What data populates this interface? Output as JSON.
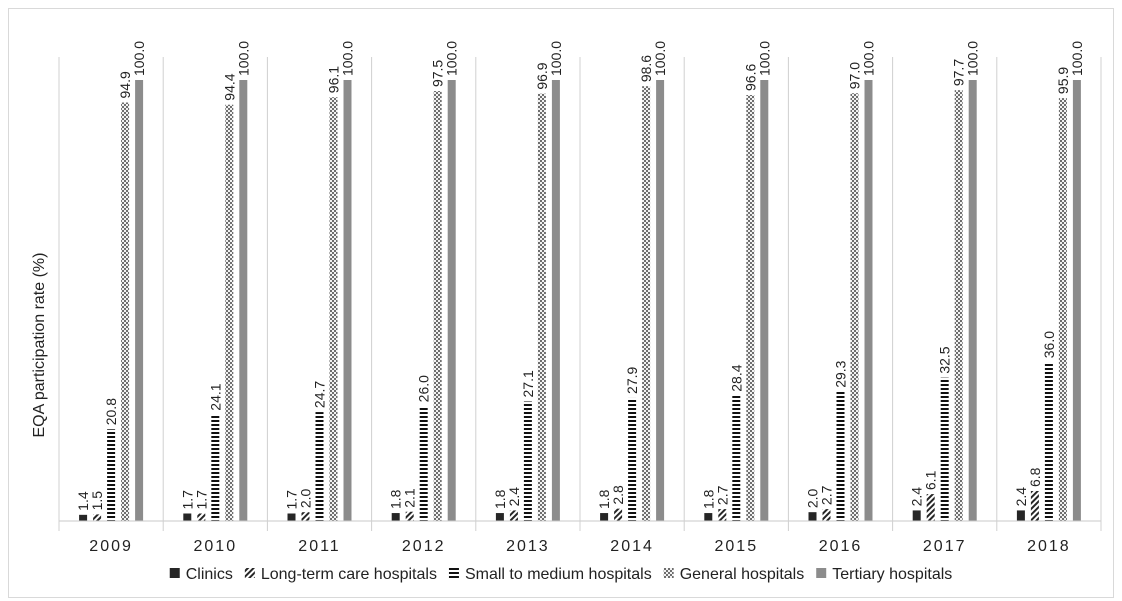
{
  "chart_data": {
    "type": "bar",
    "title": "",
    "xlabel": "",
    "ylabel": "EQA participation rate (%)",
    "ylim": [
      0,
      100
    ],
    "grid": false,
    "legend_position": "bottom",
    "categories": [
      "2009",
      "2010",
      "2011",
      "2012",
      "2013",
      "2014",
      "2015",
      "2016",
      "2017",
      "2018"
    ],
    "series": [
      {
        "name": "Clinics",
        "pattern": "solid-dark",
        "color": "#262626",
        "values": [
          1.4,
          1.7,
          1.7,
          1.8,
          1.8,
          1.8,
          1.8,
          2.0,
          2.4,
          2.4
        ],
        "labels": [
          "1.4",
          "1.7",
          "1.7",
          "1.8",
          "1.8",
          "1.8",
          "1.8",
          "2.0",
          "2.4",
          "2.4"
        ]
      },
      {
        "name": "Long-term care hospitals",
        "pattern": "diagonal-stripes",
        "color": "#262626",
        "values": [
          1.5,
          1.7,
          2.0,
          2.1,
          2.4,
          2.8,
          2.7,
          2.7,
          6.1,
          6.8
        ],
        "labels": [
          "1.5",
          "1.7",
          "2.0",
          "2.1",
          "2.4",
          "2.8",
          "2.7",
          "2.7",
          "6.1",
          "6.8"
        ]
      },
      {
        "name": "Small to medium hospitals",
        "pattern": "horizontal-dashes",
        "color": "#262626",
        "values": [
          20.8,
          24.1,
          24.7,
          26.0,
          27.1,
          27.9,
          28.4,
          29.3,
          32.5,
          36.0
        ],
        "labels": [
          "20.8",
          "24.1",
          "24.7",
          "26.0",
          "27.1",
          "27.9",
          "28.4",
          "29.3",
          "32.5",
          "36.0"
        ]
      },
      {
        "name": "General hospitals",
        "pattern": "crosshatch",
        "color": "#808080",
        "values": [
          94.9,
          94.4,
          96.1,
          97.5,
          96.9,
          98.6,
          96.6,
          97.0,
          97.7,
          95.9
        ],
        "labels": [
          "94.9",
          "94.4",
          "96.1",
          "97.5",
          "96.9",
          "98.6",
          "96.6",
          "97.0",
          "97.7",
          "95.9"
        ]
      },
      {
        "name": "Tertiary hospitals",
        "pattern": "solid-gray",
        "color": "#8c8c8c",
        "values": [
          100.0,
          100.0,
          100.0,
          100.0,
          100.0,
          100.0,
          100.0,
          100.0,
          100.0,
          100.0
        ],
        "labels": [
          "100.0",
          "100.0",
          "100.0",
          "100.0",
          "100.0",
          "100.0",
          "100.0",
          "100.0",
          "100.0",
          "100.0"
        ]
      }
    ]
  }
}
